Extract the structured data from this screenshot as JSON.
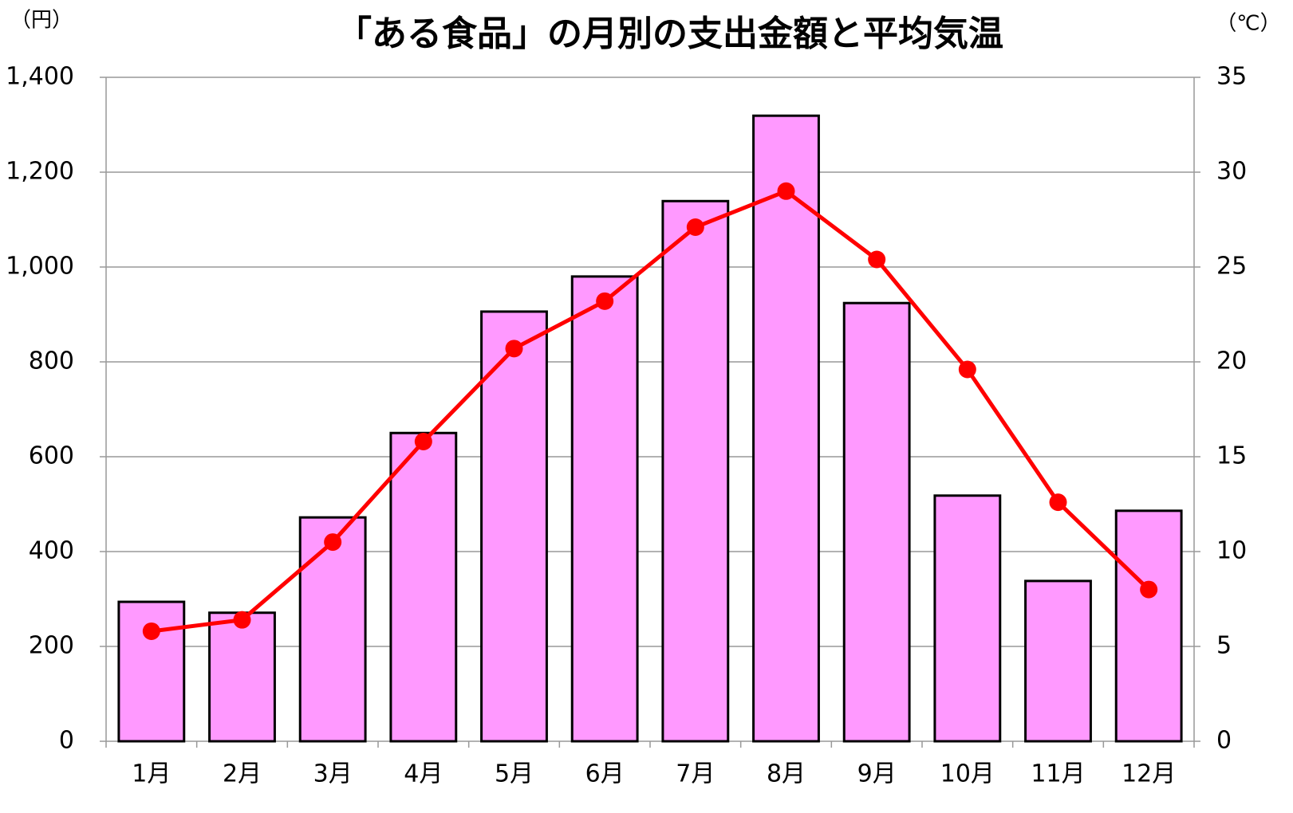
{
  "chart_data": {
    "type": "combo",
    "title": "「ある食品」の月別の支出金額と平均気温",
    "y_label": "（円）",
    "y2_label": "（℃）",
    "categories": [
      "1月",
      "2月",
      "3月",
      "4月",
      "5月",
      "6月",
      "7月",
      "8月",
      "9月",
      "10月",
      "11月",
      "12月"
    ],
    "series": [
      {
        "type": "bar",
        "color": "#ff99ff",
        "values": [
          294,
          271,
          472,
          650,
          906,
          980,
          1139,
          1319,
          924,
          518,
          338,
          486
        ]
      },
      {
        "type": "line",
        "axis": "y2",
        "color": "#ff0000",
        "values": [
          5.8,
          6.4,
          10.5,
          15.8,
          20.7,
          23.2,
          27.1,
          29.0,
          25.4,
          19.6,
          12.6,
          8.0
        ]
      }
    ],
    "ylim": [
      0,
      1400
    ],
    "yticks": [
      0,
      200,
      400,
      600,
      800,
      {
        "value": 1000,
        "label": "1,000"
      },
      {
        "value": 1200,
        "label": "1,200"
      },
      {
        "value": 1400,
        "label": "1,400"
      }
    ],
    "y2lim": [
      0,
      35
    ],
    "y2ticks": [
      0,
      5,
      10,
      15,
      20,
      25,
      30,
      35
    ],
    "grid": true
  }
}
